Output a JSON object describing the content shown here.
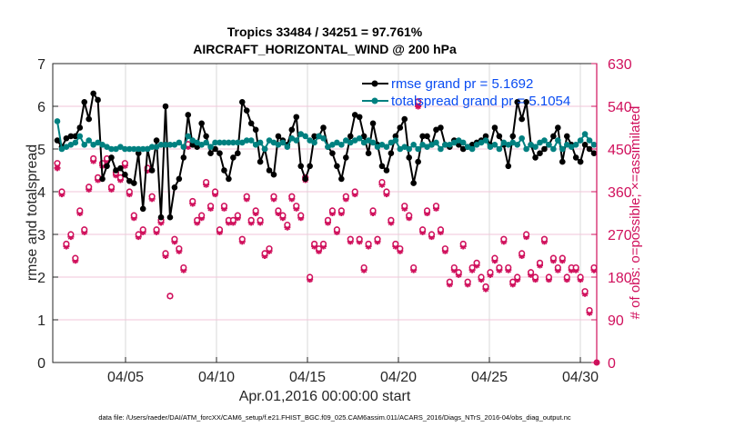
{
  "chart_data": {
    "type": "line",
    "title": [
      "Tropics 33484 / 34251 = 97.761%",
      "AIRCRAFT_HORIZONTAL_WIND @ 200 hPa"
    ],
    "xlabel": "Apr.01,2016 00:00:00 start",
    "ylabel": "rmse and totalspread",
    "ylabel_right": "# of obs: o=possible; ×=assimilated",
    "footnote": "data file: /Users/raeder/DAI/ATM_forcXX/CAM6_setup/f.e21.FHIST_BGC.f09_025.CAM6assim.011/ACARS_2016/Diags_NTrS_2016-04/obs_diag_output.nc",
    "x_unit": "days since Apr.01,2016 00:00",
    "xlim": [
      0,
      29.9
    ],
    "ylim": [
      0,
      7
    ],
    "ylim_right": [
      0,
      630
    ],
    "x_ticks": [
      4,
      9,
      14,
      19,
      24,
      29
    ],
    "x_tick_labels": [
      "04/05",
      "04/10",
      "04/15",
      "04/20",
      "04/25",
      "04/30"
    ],
    "y_ticks": [
      0,
      1,
      2,
      3,
      4,
      5,
      6,
      7
    ],
    "y_tick_labels": [
      "0",
      "1",
      "2",
      "3",
      "4",
      "5",
      "6",
      "7"
    ],
    "y_right_ticks": [
      0,
      90,
      180,
      270,
      360,
      450,
      540,
      630
    ],
    "y_right_tick_labels": [
      "0",
      "90",
      "180",
      "270",
      "360",
      "450",
      "540",
      "630"
    ],
    "grid": true,
    "legend_position": "top-right",
    "colors": {
      "rmse": "#000000",
      "totalspread": "#008080",
      "obs": "#d0105c",
      "legend_text": "#0a4cf2",
      "grid_v": "#d9d9d9",
      "grid_h": "#f2c6d8"
    },
    "series": [
      {
        "name": "rmse",
        "legend": "rmse grand pr = 5.1692",
        "values": [
          5.2,
          5.05,
          5.25,
          5.3,
          5.3,
          5.5,
          6.1,
          5.7,
          6.3,
          6.15,
          4.3,
          4.6,
          4.8,
          4.5,
          4.55,
          4.4,
          4.25,
          4.2,
          4.9,
          3.6,
          5.0,
          4.5,
          5.2,
          3.4,
          6.0,
          3.4,
          4.1,
          4.3,
          4.8,
          5.8,
          5.1,
          5.05,
          5.6,
          5.3,
          4.9,
          5.0,
          4.9,
          4.5,
          4.3,
          4.8,
          4.9,
          6.1,
          5.9,
          5.6,
          5.45,
          4.7,
          5.0,
          4.5,
          4.4,
          5.3,
          5.2,
          5.1,
          5.45,
          5.75,
          4.6,
          4.3,
          4.6,
          5.3,
          5.3,
          5.5,
          5.05,
          4.9,
          4.6,
          4.3,
          4.8,
          5.3,
          5.8,
          5.75,
          5.3,
          4.9,
          5.6,
          5.1,
          4.6,
          4.5,
          4.9,
          5.3,
          5.5,
          5.7,
          4.8,
          4.2,
          4.7,
          5.3,
          5.3,
          5.1,
          5.45,
          5.5,
          5.1,
          5.05,
          5.2,
          5.1,
          5.0,
          5.05,
          5.1,
          5.15,
          5.2,
          5.3,
          5.1,
          5.5,
          5.3,
          5.1,
          4.6,
          5.3,
          6.1,
          5.7,
          6.1,
          5.1,
          4.8,
          4.9,
          5.0,
          5.1,
          5.3,
          5.5,
          4.7,
          5.3,
          5.1,
          4.8,
          4.7,
          5.1,
          5.0,
          4.9
        ],
        "marker": "filled-circle"
      },
      {
        "name": "totalspread",
        "legend": "totalspread grand pr = 5.1054",
        "values": [
          5.65,
          5.0,
          5.05,
          5.1,
          5.15,
          5.3,
          5.1,
          5.2,
          5.1,
          5.15,
          5.1,
          5.05,
          5.0,
          5.0,
          5.05,
          5.0,
          5.0,
          5.0,
          5.0,
          5.0,
          5.0,
          5.05,
          5.05,
          5.1,
          5.1,
          5.1,
          5.1,
          5.15,
          5.05,
          5.3,
          5.2,
          5.15,
          5.1,
          5.15,
          5.05,
          5.15,
          5.15,
          5.15,
          5.15,
          5.15,
          5.15,
          5.15,
          5.2,
          5.2,
          5.1,
          5.15,
          5.0,
          5.2,
          5.15,
          5.1,
          5.15,
          5.05,
          5.25,
          5.2,
          5.35,
          5.3,
          5.2,
          5.15,
          5.3,
          5.25,
          5.05,
          5.1,
          5.15,
          5.1,
          5.2,
          5.15,
          5.2,
          5.25,
          5.15,
          5.2,
          5.15,
          5.05,
          5.1,
          5.05,
          5.15,
          5.2,
          5.0,
          5.05,
          5.0,
          5.1,
          5.0,
          5.1,
          5.05,
          5.1,
          5.15,
          5.0,
          5.1,
          5.1,
          5.15,
          5.2,
          5.15,
          5.05,
          5.0,
          5.1,
          5.15,
          5.2,
          5.05,
          5.1,
          5.0,
          5.15,
          5.1,
          5.15,
          5.1,
          5.25,
          5.0,
          5.1,
          5.05,
          5.15,
          5.2,
          5.1,
          5.0,
          5.2,
          5.0,
          5.1,
          5.05,
          5.1,
          5.2,
          5.35,
          5.2,
          5.1
        ],
        "marker": "filled-circle"
      },
      {
        "name": "obs_possible",
        "axis": "right",
        "values": [
          420,
          360,
          250,
          270,
          220,
          320,
          280,
          370,
          430,
          390,
          420,
          430,
          370,
          400,
          390,
          420,
          360,
          310,
          270,
          280,
          410,
          350,
          280,
          300,
          230,
          140,
          260,
          240,
          200,
          460,
          340,
          300,
          310,
          380,
          330,
          360,
          280,
          330,
          300,
          300,
          310,
          260,
          350,
          300,
          320,
          300,
          230,
          240,
          350,
          320,
          310,
          290,
          350,
          330,
          310,
          390,
          180,
          250,
          240,
          250,
          300,
          320,
          280,
          320,
          350,
          260,
          360,
          260,
          200,
          250,
          320,
          260,
          380,
          360,
          300,
          250,
          240,
          330,
          310,
          200,
          550,
          280,
          320,
          270,
          330,
          280,
          240,
          170,
          200,
          190,
          250,
          170,
          200,
          210,
          180,
          160,
          190,
          220,
          200,
          260,
          200,
          170,
          180,
          230,
          270,
          190,
          180,
          210,
          260,
          180,
          220,
          200,
          220,
          180,
          200,
          200,
          180,
          150,
          110,
          200
        ],
        "marker": "open-circle"
      },
      {
        "name": "obs_assimilated",
        "axis": "right",
        "values": [
          410,
          355,
          245,
          265,
          215,
          315,
          275,
          365,
          425,
          385,
          415,
          425,
          365,
          395,
          385,
          415,
          355,
          305,
          265,
          275,
          405,
          345,
          275,
          295,
          225,
          140,
          255,
          235,
          195,
          455,
          335,
          295,
          305,
          375,
          325,
          355,
          275,
          325,
          295,
          295,
          305,
          255,
          345,
          295,
          315,
          295,
          225,
          235,
          345,
          315,
          305,
          285,
          345,
          325,
          305,
          385,
          175,
          245,
          235,
          245,
          295,
          315,
          275,
          315,
          345,
          255,
          355,
          255,
          195,
          245,
          315,
          255,
          375,
          355,
          295,
          245,
          235,
          325,
          305,
          195,
          540,
          275,
          315,
          265,
          325,
          275,
          235,
          165,
          195,
          185,
          245,
          165,
          195,
          205,
          175,
          155,
          185,
          215,
          195,
          255,
          195,
          165,
          175,
          225,
          265,
          185,
          175,
          205,
          255,
          175,
          215,
          195,
          215,
          175,
          195,
          195,
          175,
          145,
          105,
          195
        ],
        "marker": "asterisk"
      }
    ]
  }
}
